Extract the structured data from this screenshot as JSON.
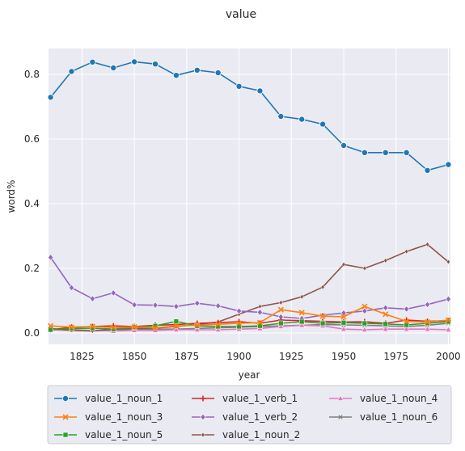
{
  "chart_data": {
    "type": "line",
    "title": "value",
    "xlabel": "year",
    "ylabel": "word%",
    "xlim": [
      1809,
      2001
    ],
    "ylim": [
      -0.035,
      0.88
    ],
    "xticks": [
      1825,
      1850,
      1875,
      1900,
      1925,
      1950,
      1975,
      2000
    ],
    "yticks": [
      0.0,
      0.2,
      0.4,
      0.6,
      0.8
    ],
    "grid": true,
    "legend_position": "bottom-center",
    "x": [
      1810,
      1820,
      1830,
      1840,
      1850,
      1860,
      1870,
      1880,
      1890,
      1900,
      1910,
      1920,
      1930,
      1940,
      1950,
      1960,
      1970,
      1980,
      1990,
      2000
    ],
    "series": [
      {
        "name": "value_1_noun_1",
        "color": "#1f77b4",
        "marker": "circle",
        "values": [
          0.729,
          0.809,
          0.838,
          0.82,
          0.839,
          0.832,
          0.797,
          0.813,
          0.805,
          0.763,
          0.749,
          0.67,
          0.661,
          0.646,
          0.58,
          0.558,
          0.558,
          0.558,
          0.503,
          0.521
        ]
      },
      {
        "name": "value_1_noun_3",
        "color": "#ff7f0e",
        "marker": "x",
        "values": [
          0.022,
          0.018,
          0.02,
          0.017,
          0.019,
          0.016,
          0.022,
          0.024,
          0.027,
          0.03,
          0.032,
          0.072,
          0.063,
          0.052,
          0.05,
          0.082,
          0.058,
          0.036,
          0.034,
          0.04
        ]
      },
      {
        "name": "value_1_noun_5",
        "color": "#2ca02c",
        "marker": "square",
        "values": [
          0.01,
          0.014,
          0.015,
          0.012,
          0.018,
          0.022,
          0.036,
          0.022,
          0.02,
          0.02,
          0.022,
          0.03,
          0.035,
          0.03,
          0.032,
          0.03,
          0.028,
          0.025,
          0.03,
          0.035
        ]
      },
      {
        "name": "value_1_verb_1",
        "color": "#d62728",
        "marker": "plus",
        "values": [
          0.01,
          0.018,
          0.02,
          0.022,
          0.02,
          0.024,
          0.026,
          0.03,
          0.032,
          0.035,
          0.03,
          0.04,
          0.038,
          0.036,
          0.034,
          0.035,
          0.03,
          0.04,
          0.036,
          0.038
        ]
      },
      {
        "name": "value_1_verb_2",
        "color": "#9467bd",
        "marker": "diamond",
        "values": [
          0.234,
          0.14,
          0.106,
          0.124,
          0.087,
          0.086,
          0.082,
          0.092,
          0.084,
          0.068,
          0.064,
          0.05,
          0.045,
          0.055,
          0.062,
          0.068,
          0.078,
          0.074,
          0.088,
          0.105
        ]
      },
      {
        "name": "value_1_noun_2",
        "color": "#8c564b",
        "marker": "diamond-small",
        "values": [
          0.014,
          0.008,
          0.006,
          0.012,
          0.014,
          0.015,
          0.02,
          0.026,
          0.034,
          0.058,
          0.082,
          0.094,
          0.112,
          0.142,
          0.212,
          0.2,
          0.224,
          0.252,
          0.274,
          0.22
        ]
      },
      {
        "name": "value_1_noun_4",
        "color": "#e377c2",
        "marker": "triangle",
        "values": [
          0.01,
          0.008,
          0.008,
          0.006,
          0.008,
          0.008,
          0.01,
          0.01,
          0.01,
          0.012,
          0.014,
          0.02,
          0.024,
          0.022,
          0.012,
          0.01,
          0.012,
          0.012,
          0.012,
          0.01
        ]
      },
      {
        "name": "value_1_noun_6",
        "color": "#7f7f7f",
        "marker": "x-small",
        "values": [
          0.012,
          0.01,
          0.008,
          0.01,
          0.01,
          0.012,
          0.012,
          0.014,
          0.016,
          0.018,
          0.02,
          0.022,
          0.024,
          0.026,
          0.025,
          0.024,
          0.022,
          0.02,
          0.024,
          0.03
        ]
      }
    ]
  }
}
